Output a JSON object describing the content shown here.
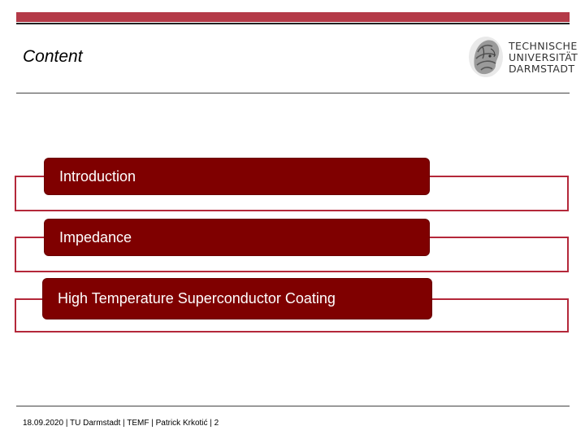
{
  "slide": {
    "title": "Content"
  },
  "logo": {
    "lines": [
      "TECHNISCHE",
      "UNIVERSITÄT",
      "DARMSTADT"
    ]
  },
  "agenda": {
    "items": [
      {
        "label": "Introduction"
      },
      {
        "label": "Impedance"
      },
      {
        "label": "High Temperature Superconductor Coating"
      }
    ]
  },
  "footer": {
    "text": "18.09.2020 | TU Darmstadt | TEMF | Patrick Krkotić | 2"
  },
  "colors": {
    "accent_bar": "#b43a48",
    "item_fill": "#7f0000",
    "item_frame": "#b4283a"
  }
}
